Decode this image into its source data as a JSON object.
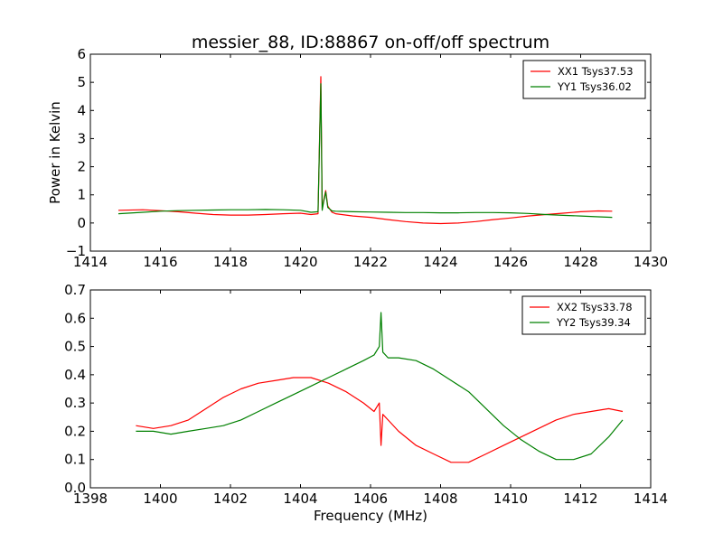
{
  "figure": {
    "title": "messier_88, ID:88867 on-off/off spectrum"
  },
  "chart_data": [
    {
      "type": "line",
      "title": "messier_88, ID:88867 on-off/off spectrum",
      "xlabel": "",
      "ylabel": "Power in Kelvin",
      "xlim": [
        1414,
        1430
      ],
      "ylim": [
        -1,
        6
      ],
      "xticks": [
        1414,
        1416,
        1418,
        1420,
        1422,
        1424,
        1426,
        1428,
        1430
      ],
      "yticks": [
        -1,
        0,
        1,
        2,
        3,
        4,
        5,
        6
      ],
      "grid": false,
      "legend": "top-right",
      "series": [
        {
          "name": "XX1 Tsys37.53",
          "color": "#ff0000",
          "x": [
            1414.8,
            1415.5,
            1416.0,
            1416.5,
            1417.0,
            1417.5,
            1418.0,
            1418.5,
            1419.0,
            1419.5,
            1420.0,
            1420.3,
            1420.5,
            1420.58,
            1420.62,
            1420.66,
            1420.72,
            1420.78,
            1420.9,
            1421.0,
            1421.5,
            1422.0,
            1422.5,
            1423.0,
            1423.5,
            1424.0,
            1424.5,
            1425.0,
            1425.5,
            1426.0,
            1426.5,
            1427.0,
            1427.5,
            1428.0,
            1428.5,
            1428.9
          ],
          "y": [
            0.45,
            0.47,
            0.44,
            0.4,
            0.35,
            0.3,
            0.28,
            0.28,
            0.3,
            0.33,
            0.35,
            0.3,
            0.33,
            5.2,
            0.5,
            0.8,
            1.15,
            0.6,
            0.38,
            0.33,
            0.25,
            0.2,
            0.12,
            0.05,
            0.0,
            -0.02,
            0.0,
            0.05,
            0.12,
            0.18,
            0.25,
            0.3,
            0.35,
            0.4,
            0.43,
            0.42
          ]
        },
        {
          "name": "YY1 Tsys36.02",
          "color": "#008000",
          "x": [
            1414.8,
            1415.5,
            1416.0,
            1416.5,
            1417.0,
            1417.5,
            1418.0,
            1418.5,
            1419.0,
            1419.5,
            1420.0,
            1420.3,
            1420.5,
            1420.58,
            1420.62,
            1420.66,
            1420.72,
            1420.78,
            1420.9,
            1421.0,
            1421.5,
            1422.0,
            1422.5,
            1423.0,
            1423.5,
            1424.0,
            1424.5,
            1425.0,
            1425.5,
            1426.0,
            1426.5,
            1427.0,
            1427.5,
            1428.0,
            1428.5,
            1428.9
          ],
          "y": [
            0.33,
            0.38,
            0.42,
            0.44,
            0.45,
            0.46,
            0.47,
            0.47,
            0.48,
            0.47,
            0.45,
            0.38,
            0.4,
            4.95,
            0.45,
            0.75,
            1.1,
            0.55,
            0.43,
            0.42,
            0.4,
            0.39,
            0.38,
            0.37,
            0.37,
            0.36,
            0.36,
            0.37,
            0.37,
            0.36,
            0.34,
            0.3,
            0.27,
            0.25,
            0.22,
            0.2
          ]
        }
      ]
    },
    {
      "type": "line",
      "title": "",
      "xlabel": "Frequency (MHz)",
      "ylabel": "",
      "xlim": [
        1398,
        1414
      ],
      "ylim": [
        0.0,
        0.7
      ],
      "xticks": [
        1398,
        1400,
        1402,
        1404,
        1406,
        1408,
        1410,
        1412,
        1414
      ],
      "yticks": [
        0.0,
        0.1,
        0.2,
        0.3,
        0.4,
        0.5,
        0.6,
        0.7
      ],
      "grid": false,
      "legend": "top-right",
      "series": [
        {
          "name": "XX2 Tsys33.78",
          "color": "#ff0000",
          "x": [
            1399.3,
            1399.8,
            1400.3,
            1400.8,
            1401.3,
            1401.8,
            1402.3,
            1402.8,
            1403.3,
            1403.8,
            1404.3,
            1404.8,
            1405.3,
            1405.8,
            1406.1,
            1406.25,
            1406.3,
            1406.35,
            1406.5,
            1406.8,
            1407.3,
            1407.8,
            1408.3,
            1408.8,
            1409.3,
            1409.8,
            1410.3,
            1410.8,
            1411.3,
            1411.8,
            1412.3,
            1412.8,
            1413.2
          ],
          "y": [
            0.22,
            0.21,
            0.22,
            0.24,
            0.28,
            0.32,
            0.35,
            0.37,
            0.38,
            0.39,
            0.39,
            0.37,
            0.34,
            0.3,
            0.27,
            0.3,
            0.15,
            0.26,
            0.24,
            0.2,
            0.15,
            0.12,
            0.09,
            0.09,
            0.12,
            0.15,
            0.18,
            0.21,
            0.24,
            0.26,
            0.27,
            0.28,
            0.27
          ]
        },
        {
          "name": "YY2 Tsys39.34",
          "color": "#008000",
          "x": [
            1399.3,
            1399.8,
            1400.3,
            1400.8,
            1401.3,
            1401.8,
            1402.3,
            1402.8,
            1403.3,
            1403.8,
            1404.3,
            1404.8,
            1405.3,
            1405.8,
            1406.1,
            1406.25,
            1406.3,
            1406.35,
            1406.5,
            1406.8,
            1407.3,
            1407.8,
            1408.3,
            1408.8,
            1409.3,
            1409.8,
            1410.3,
            1410.8,
            1411.3,
            1411.8,
            1412.3,
            1412.8,
            1413.2
          ],
          "y": [
            0.2,
            0.2,
            0.19,
            0.2,
            0.21,
            0.22,
            0.24,
            0.27,
            0.3,
            0.33,
            0.36,
            0.39,
            0.42,
            0.45,
            0.47,
            0.5,
            0.62,
            0.48,
            0.46,
            0.46,
            0.45,
            0.42,
            0.38,
            0.34,
            0.28,
            0.22,
            0.17,
            0.13,
            0.1,
            0.1,
            0.12,
            0.18,
            0.24
          ]
        }
      ]
    }
  ]
}
